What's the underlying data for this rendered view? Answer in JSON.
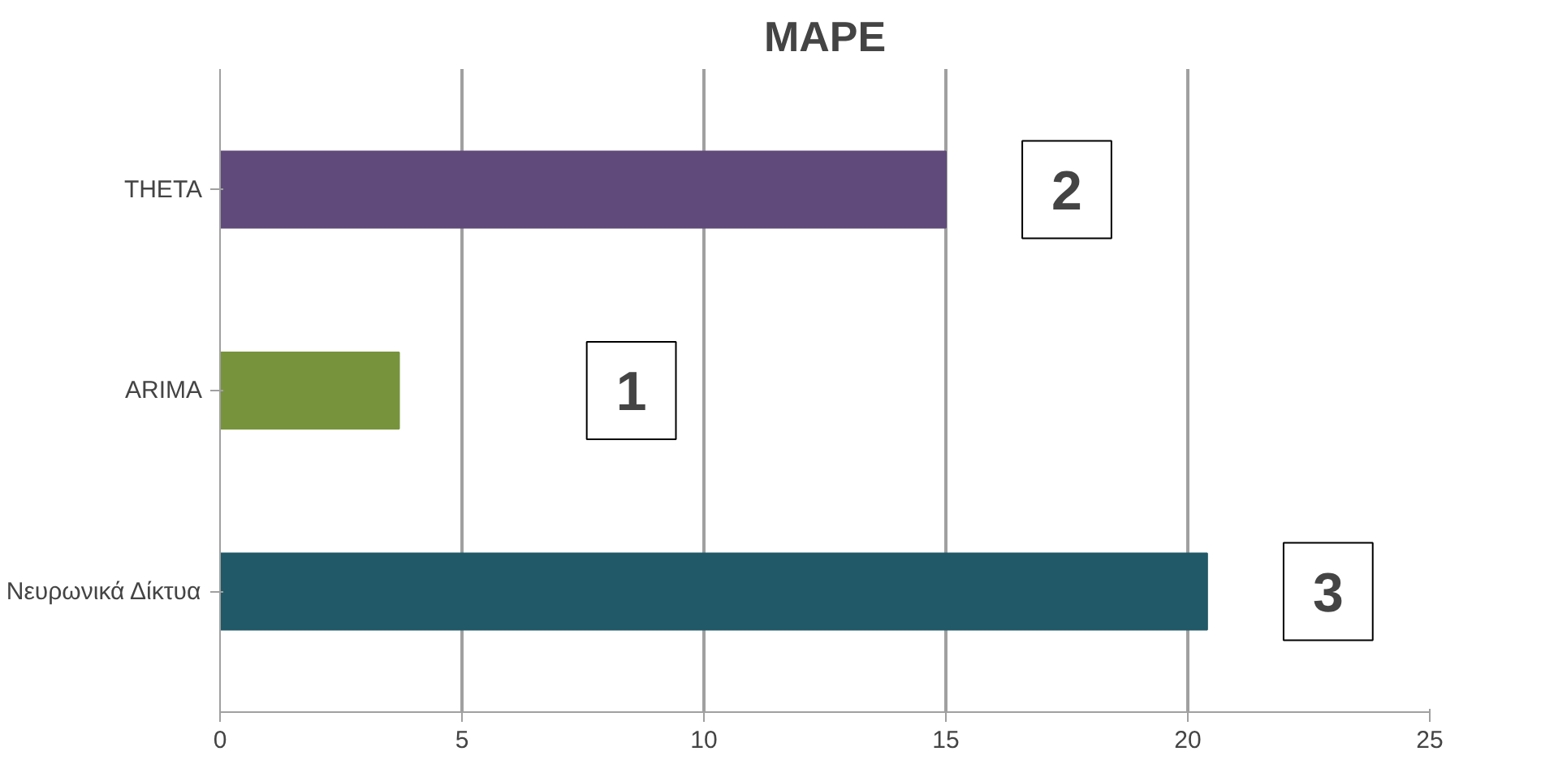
{
  "chart_data": {
    "type": "bar",
    "orientation": "horizontal",
    "title": "MAPE",
    "categories": [
      "THETA",
      "ARIMA",
      "Νευρωνικά Δίκτυα"
    ],
    "values": [
      15,
      3.7,
      20.4
    ],
    "colors": [
      "#604a7b",
      "#77933c",
      "#215968"
    ],
    "xlim": [
      0,
      25
    ],
    "xticks": [
      0,
      5,
      10,
      15,
      20,
      25
    ],
    "grid": "x",
    "annotations": [
      "1",
      "2",
      "3"
    ]
  }
}
